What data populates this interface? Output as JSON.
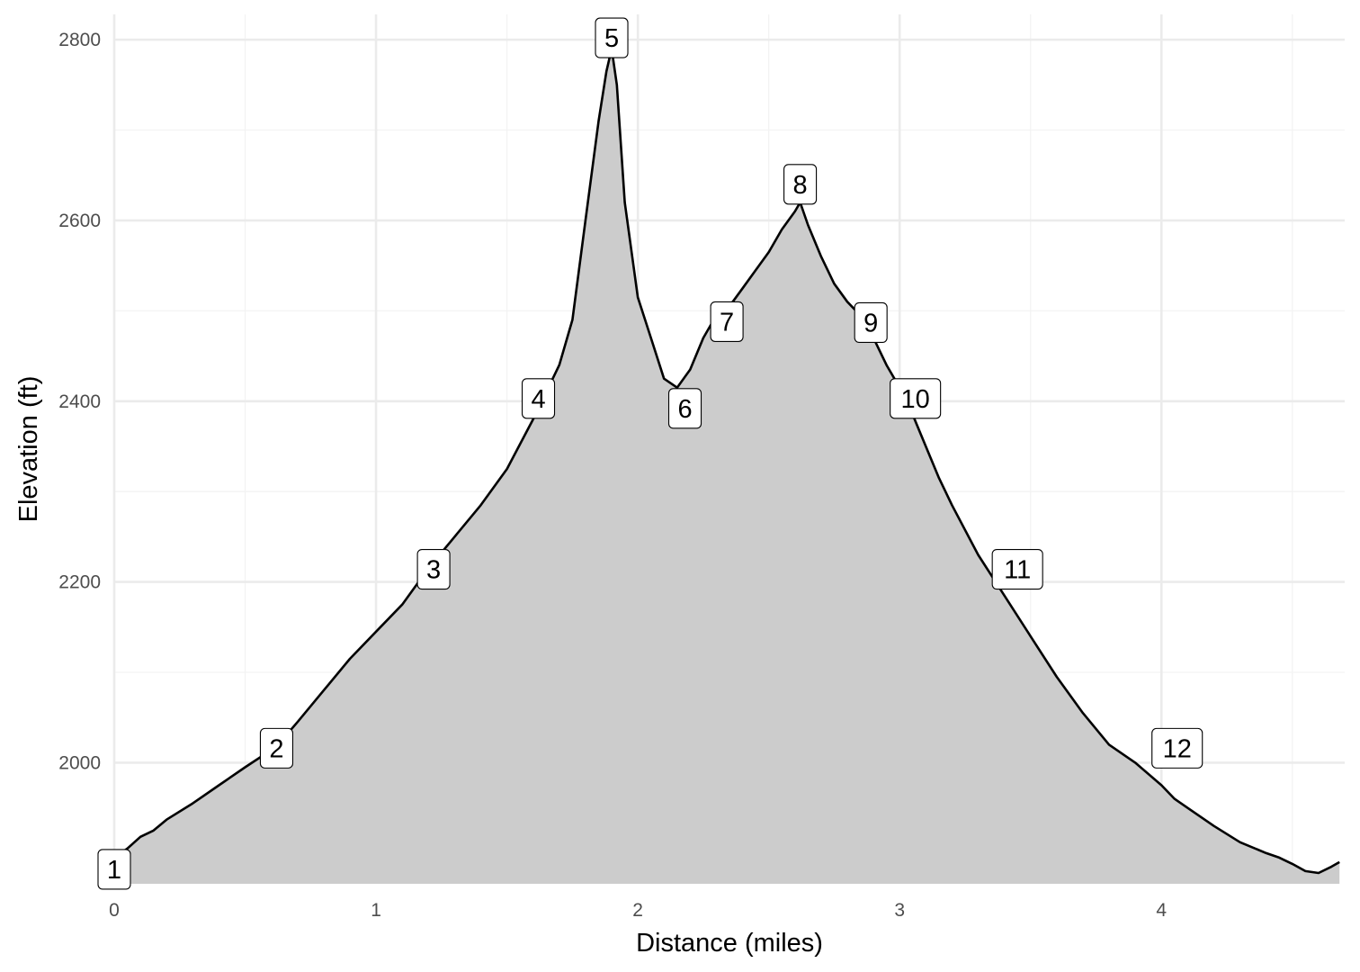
{
  "chart_data": {
    "type": "area",
    "title": "",
    "xlabel": "Distance (miles)",
    "ylabel": "Elevation (ft)",
    "xlim": [
      0,
      4.7
    ],
    "ylim": [
      1866,
      2828
    ],
    "x_major_ticks": [
      0,
      1,
      2,
      3,
      4
    ],
    "x_tick_labels": [
      "0",
      "1",
      "2",
      "3",
      "4"
    ],
    "y_major_ticks": [
      2000,
      2200,
      2400,
      2600,
      2800
    ],
    "y_tick_labels": [
      "2000",
      "2200",
      "2400",
      "2600",
      "2800"
    ],
    "x_minor_ticks": [
      0.5,
      1.5,
      2.5,
      3.5,
      4.5
    ],
    "y_minor_ticks": [
      2100,
      2300,
      2500,
      2700
    ],
    "baseline": 1866,
    "fill_color": "#cccccc",
    "line_color": "#000000",
    "grid": true,
    "legend": "none",
    "profile": {
      "x": [
        0,
        0.05,
        0.1,
        0.15,
        0.2,
        0.3,
        0.4,
        0.5,
        0.62,
        0.7,
        0.8,
        0.9,
        1.0,
        1.1,
        1.2,
        1.3,
        1.4,
        1.5,
        1.6,
        1.65,
        1.7,
        1.75,
        1.8,
        1.85,
        1.88,
        1.9,
        1.92,
        1.95,
        2.0,
        2.05,
        2.1,
        2.15,
        2.2,
        2.25,
        2.3,
        2.35,
        2.4,
        2.45,
        2.5,
        2.55,
        2.6,
        2.62,
        2.65,
        2.7,
        2.75,
        2.8,
        2.85,
        2.9,
        2.95,
        3.0,
        3.05,
        3.1,
        3.15,
        3.2,
        3.3,
        3.4,
        3.5,
        3.6,
        3.7,
        3.8,
        3.9,
        4.0,
        4.05,
        4.1,
        4.2,
        4.3,
        4.4,
        4.45,
        4.5,
        4.55,
        4.6,
        4.65,
        4.68
      ],
      "y": [
        1895,
        1905,
        1918,
        1925,
        1937,
        1955,
        1975,
        1995,
        2018,
        2045,
        2080,
        2115,
        2145,
        2175,
        2215,
        2250,
        2285,
        2325,
        2380,
        2410,
        2440,
        2490,
        2600,
        2710,
        2765,
        2790,
        2750,
        2620,
        2515,
        2470,
        2425,
        2415,
        2435,
        2470,
        2495,
        2505,
        2525,
        2545,
        2565,
        2590,
        2610,
        2620,
        2595,
        2560,
        2530,
        2510,
        2495,
        2470,
        2440,
        2415,
        2385,
        2350,
        2315,
        2285,
        2230,
        2185,
        2140,
        2095,
        2055,
        2020,
        2000,
        1975,
        1960,
        1950,
        1930,
        1912,
        1900,
        1895,
        1888,
        1880,
        1878,
        1885,
        1890
      ]
    },
    "labels": [
      {
        "text": "1",
        "x": 0.0,
        "y": 1882
      },
      {
        "text": "2",
        "x": 0.62,
        "y": 2016
      },
      {
        "text": "3",
        "x": 1.22,
        "y": 2214
      },
      {
        "text": "4",
        "x": 1.62,
        "y": 2403
      },
      {
        "text": "5",
        "x": 1.9,
        "y": 2802
      },
      {
        "text": "6",
        "x": 2.18,
        "y": 2392
      },
      {
        "text": "7",
        "x": 2.34,
        "y": 2488
      },
      {
        "text": "8",
        "x": 2.62,
        "y": 2640
      },
      {
        "text": "9",
        "x": 2.89,
        "y": 2487
      },
      {
        "text": "10",
        "x": 3.06,
        "y": 2403
      },
      {
        "text": "11",
        "x": 3.45,
        "y": 2214
      },
      {
        "text": "12",
        "x": 4.06,
        "y": 2016
      }
    ]
  }
}
